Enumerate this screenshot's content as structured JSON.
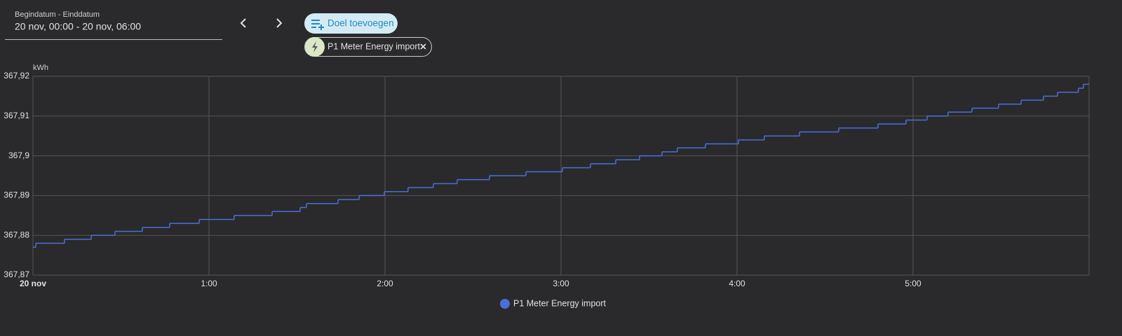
{
  "date_field": {
    "label": "Begindatum - Einddatum",
    "value": "20 nov, 00:00 - 20 nov, 06:00"
  },
  "add_target_button": "Doel toevoegen",
  "target_chip": "P1 Meter Energy import",
  "chart_data": {
    "type": "step-line",
    "y_label": "kWh",
    "x": [
      0,
      0.016,
      0.179,
      0.331,
      0.466,
      0.622,
      0.777,
      0.944,
      1.143,
      1.359,
      1.518,
      1.554,
      1.733,
      1.853,
      1.996,
      2.131,
      2.275,
      2.41,
      2.594,
      2.801,
      3.008,
      3.167,
      3.311,
      3.446,
      3.574,
      3.661,
      3.821,
      4.008,
      4.155,
      4.355,
      4.578,
      4.801,
      4.96,
      5.08,
      5.199,
      5.335,
      5.486,
      5.614,
      5.741,
      5.821,
      5.94,
      5.968
    ],
    "series": [
      {
        "name": "P1 Meter Energy import",
        "color": "#4a6fd8",
        "values": [
          367.877,
          367.878,
          367.879,
          367.88,
          367.881,
          367.882,
          367.883,
          367.884,
          367.885,
          367.886,
          367.887,
          367.888,
          367.889,
          367.89,
          367.891,
          367.892,
          367.893,
          367.894,
          367.895,
          367.896,
          367.897,
          367.898,
          367.899,
          367.9,
          367.901,
          367.902,
          367.903,
          367.904,
          367.905,
          367.906,
          367.907,
          367.908,
          367.909,
          367.91,
          367.911,
          367.912,
          367.913,
          367.914,
          367.915,
          367.916,
          367.917,
          367.918
        ]
      }
    ],
    "xlim": [
      0,
      6
    ],
    "xticks": [
      {
        "value": 0,
        "label": "20 nov"
      },
      {
        "value": 1,
        "label": "1:00"
      },
      {
        "value": 2,
        "label": "2:00"
      },
      {
        "value": 3,
        "label": "3:00"
      },
      {
        "value": 4,
        "label": "4:00"
      },
      {
        "value": 5,
        "label": "5:00"
      }
    ],
    "ylim": [
      367.87,
      367.92
    ],
    "yticks": [
      {
        "value": 367.87,
        "label": "367,87"
      },
      {
        "value": 367.88,
        "label": "367,88"
      },
      {
        "value": 367.89,
        "label": "367,89"
      },
      {
        "value": 367.9,
        "label": "367,9"
      },
      {
        "value": 367.91,
        "label": "367,91"
      },
      {
        "value": 367.92,
        "label": "367,92"
      }
    ],
    "grid": true
  }
}
